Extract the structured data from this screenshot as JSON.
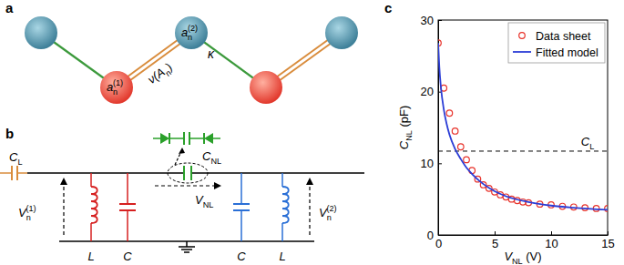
{
  "chart_data": {
    "type": "scatter",
    "panel_label": "c",
    "xlabel": {
      "base": "V",
      "sub": "NL",
      "suffix": " (V)"
    },
    "ylabel": {
      "base": "C",
      "sub": "NL",
      "suffix": " (pF)"
    },
    "xlim": [
      0,
      15
    ],
    "xticks": [
      0,
      5,
      10,
      15
    ],
    "ylim": [
      0,
      30
    ],
    "yticks": [
      0,
      10,
      20,
      30
    ],
    "legend": "upper right",
    "series": [
      {
        "name": "Data sheet",
        "type": "scatter",
        "marker": "circle",
        "color": "#e8332b",
        "x": [
          0,
          0.5,
          1,
          1.5,
          2,
          2.5,
          3,
          3.5,
          4,
          4.5,
          5,
          5.5,
          6,
          6.5,
          7,
          7.5,
          8,
          9,
          10,
          11,
          12,
          13,
          14,
          15
        ],
        "values": [
          26.8,
          20.5,
          17,
          14.5,
          12.3,
          10.5,
          9,
          7.8,
          7,
          6.5,
          6,
          5.6,
          5.3,
          5,
          4.8,
          4.6,
          4.5,
          4.3,
          4.2,
          4,
          3.9,
          3.8,
          3.7,
          3.7
        ]
      },
      {
        "name": "Fitted model",
        "type": "line",
        "line_style": "solid",
        "color": "#2b3dd6",
        "x": [
          0,
          0.1,
          0.25,
          0.5,
          0.75,
          1,
          1.5,
          2,
          2.5,
          3,
          4,
          5,
          6,
          8,
          10,
          12,
          15
        ],
        "values": [
          26.8,
          23.5,
          20.5,
          17.5,
          15.5,
          14,
          12,
          10.6,
          9.4,
          8.5,
          7.1,
          6.1,
          5.4,
          4.6,
          4.1,
          3.8,
          3.5
        ]
      }
    ],
    "reference_line": {
      "label": {
        "base": "C",
        "sub": "L"
      },
      "value": 11.7,
      "line_style": "dashed"
    }
  },
  "diagram": {
    "panel_a": {
      "label": "a",
      "sites": [
        {
          "base": "a",
          "sub": "n",
          "sup": "(1)"
        },
        {
          "base": "a",
          "sub": "n",
          "sup": "(2)"
        }
      ],
      "couplings": [
        {
          "base": "κ"
        },
        {
          "base": "ν(A",
          "sub": "n",
          "suffix": ")"
        }
      ]
    },
    "panel_b": {
      "label": "b",
      "C_L": {
        "base": "C",
        "sub": "L"
      },
      "C_NL": {
        "base": "C",
        "sub": "NL"
      },
      "V_NL": {
        "base": "V",
        "sub": "NL"
      },
      "V1": {
        "base": "V",
        "sub": "n",
        "sup": "(1)"
      },
      "V2": {
        "base": "V",
        "sub": "n",
        "sup": "(2)"
      },
      "bottom_labels": [
        "L",
        "C",
        "C",
        "L"
      ]
    }
  }
}
